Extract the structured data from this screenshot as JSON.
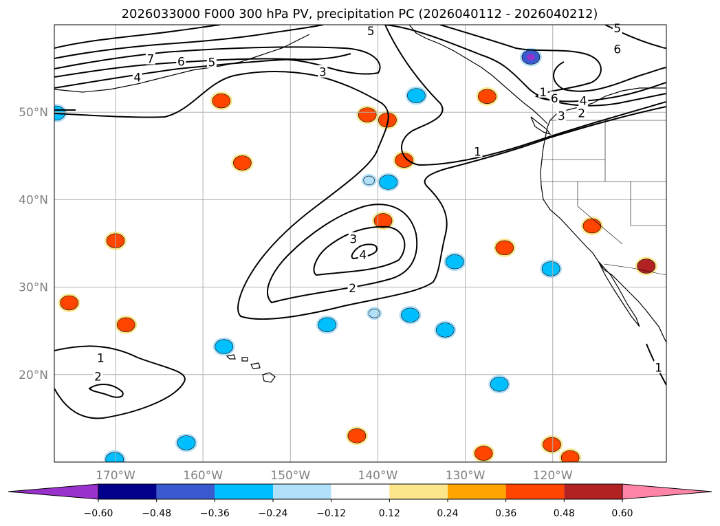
{
  "chart_data": {
    "type": "contour-map",
    "title": "2026033000 F000 300 hPa PV, precipitation PC (2026040112 - 2026040212)",
    "projection": "equirectangular",
    "lon_range": [
      -177,
      -107
    ],
    "lat_range": [
      10,
      60
    ],
    "grid": true,
    "x_ticks": [
      -170,
      -160,
      -150,
      -140,
      -130,
      -120
    ],
    "x_tick_labels": [
      "170°W",
      "160°W",
      "150°W",
      "140°W",
      "130°W",
      "120°W"
    ],
    "y_ticks": [
      20,
      30,
      40,
      50
    ],
    "y_tick_labels": [
      "20°N",
      "30°N",
      "40°N",
      "50°N"
    ],
    "pv_contour_labels": [
      {
        "text": "7",
        "lon": -166,
        "lat": 56.1
      },
      {
        "text": "6",
        "lon": -162.5,
        "lat": 55.8
      },
      {
        "text": "5",
        "lon": -159,
        "lat": 55.7
      },
      {
        "text": "4",
        "lon": -167.5,
        "lat": 54.0
      },
      {
        "text": "3",
        "lon": -146.3,
        "lat": 54.6
      },
      {
        "text": "5",
        "lon": -140.8,
        "lat": 59.3
      },
      {
        "text": "5",
        "lon": -112.6,
        "lat": 59.6
      },
      {
        "text": "6",
        "lon": -112.6,
        "lat": 57.2
      },
      {
        "text": "1",
        "lon": -121.1,
        "lat": 52.3
      },
      {
        "text": "6",
        "lon": -119.8,
        "lat": 51.6
      },
      {
        "text": "4",
        "lon": -116.5,
        "lat": 51.3
      },
      {
        "text": "2",
        "lon": -116.7,
        "lat": 49.9
      },
      {
        "text": "3",
        "lon": -119.0,
        "lat": 49.6
      },
      {
        "text": "1",
        "lon": -128.6,
        "lat": 45.5
      },
      {
        "text": "3",
        "lon": -142.8,
        "lat": 35.5
      },
      {
        "text": "4",
        "lon": -141.7,
        "lat": 33.7
      },
      {
        "text": "2",
        "lon": -142.9,
        "lat": 29.9
      },
      {
        "text": "1",
        "lon": -171.7,
        "lat": 21.9
      },
      {
        "text": "2",
        "lon": -172.0,
        "lat": 19.8
      },
      {
        "text": "1",
        "lon": -107.9,
        "lat": 20.8
      }
    ],
    "colorbar": {
      "orientation": "horizontal",
      "extend": "both",
      "bounds": [
        -0.72,
        -0.6,
        -0.48,
        -0.36,
        -0.24,
        -0.12,
        0.12,
        0.24,
        0.36,
        0.48,
        0.6,
        0.72
      ],
      "colors": [
        "#9932cc",
        "#00008b",
        "#3a5bd0",
        "#00bfff",
        "#b0e0fa",
        "#ffffff",
        "#fce68c",
        "#ffa500",
        "#ff4500",
        "#b22222",
        "#ff85a8"
      ],
      "ticks": [
        -0.6,
        -0.48,
        -0.36,
        -0.24,
        -0.12,
        0.12,
        0.24,
        0.36,
        0.48,
        0.6
      ],
      "tick_labels": [
        "−0.60",
        "−0.48",
        "−0.36",
        "−0.24",
        "−0.12",
        "0.12",
        "0.24",
        "0.36",
        "0.48",
        "0.60"
      ]
    },
    "precip_pc_blobs": [
      {
        "lon": -176.8,
        "lat": 49.9,
        "value": -0.36
      },
      {
        "lon": -141.2,
        "lat": 49.7,
        "value": 0.36
      },
      {
        "lon": -138.9,
        "lat": 49.1,
        "value": 0.36
      },
      {
        "lon": -135.6,
        "lat": 51.9,
        "value": -0.36
      },
      {
        "lon": -157.9,
        "lat": 51.3,
        "value": 0.36
      },
      {
        "lon": -127.5,
        "lat": 51.8,
        "value": 0.36
      },
      {
        "lon": -122.5,
        "lat": 56.3,
        "value": -0.48
      },
      {
        "lon": -137.0,
        "lat": 44.5,
        "value": 0.36
      },
      {
        "lon": -155.5,
        "lat": 44.2,
        "value": 0.36
      },
      {
        "lon": -141.0,
        "lat": 42.2,
        "value": -0.24
      },
      {
        "lon": -138.8,
        "lat": 42.0,
        "value": -0.36
      },
      {
        "lon": -139.4,
        "lat": 37.6,
        "value": 0.36
      },
      {
        "lon": -170.0,
        "lat": 35.3,
        "value": 0.36
      },
      {
        "lon": -131.2,
        "lat": 32.9,
        "value": -0.36
      },
      {
        "lon": -125.5,
        "lat": 34.5,
        "value": 0.36
      },
      {
        "lon": -115.5,
        "lat": 37.0,
        "value": 0.36
      },
      {
        "lon": -109.3,
        "lat": 32.4,
        "value": 0.48
      },
      {
        "lon": -120.2,
        "lat": 32.1,
        "value": -0.36
      },
      {
        "lon": -175.3,
        "lat": 28.2,
        "value": 0.36
      },
      {
        "lon": -168.8,
        "lat": 25.7,
        "value": 0.36
      },
      {
        "lon": -145.8,
        "lat": 25.7,
        "value": -0.36
      },
      {
        "lon": -157.6,
        "lat": 23.2,
        "value": -0.36
      },
      {
        "lon": -140.4,
        "lat": 27.0,
        "value": -0.24
      },
      {
        "lon": -136.3,
        "lat": 26.8,
        "value": -0.36
      },
      {
        "lon": -132.3,
        "lat": 25.1,
        "value": -0.36
      },
      {
        "lon": -126.1,
        "lat": 18.9,
        "value": -0.36
      },
      {
        "lon": -142.4,
        "lat": 13.0,
        "value": 0.36
      },
      {
        "lon": -161.9,
        "lat": 12.2,
        "value": -0.36
      },
      {
        "lon": -120.1,
        "lat": 12.0,
        "value": 0.36
      },
      {
        "lon": -127.9,
        "lat": 11.0,
        "value": 0.36
      },
      {
        "lon": -170.1,
        "lat": 10.3,
        "value": -0.36
      },
      {
        "lon": -118.0,
        "lat": 10.5,
        "value": 0.36
      }
    ]
  }
}
